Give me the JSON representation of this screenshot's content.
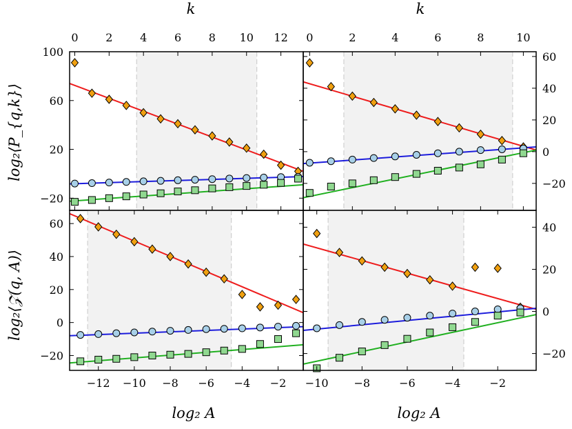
{
  "labels": {
    "top_xlabel": "k",
    "bottom_xlabel": "log₂ A",
    "ylabel_top": "log₂⟨P_{q,k}⟩",
    "ylabel_bottom": "log₂⟨𝒵(q, A)⟩"
  },
  "colors": {
    "orange": "#f0a010",
    "red_line": "#ee1c1c",
    "blue_fill": "#a8d0e8",
    "blue_line": "#1c1cdc",
    "green_fill": "#90d890",
    "green_line": "#20b020",
    "shade": "#f2f2f2"
  },
  "chart_data": [
    {
      "type": "scatter",
      "panel": "top-left",
      "x_axis": "k",
      "xlim": [
        -0.3,
        13.3
      ],
      "ylim": [
        -30,
        100
      ],
      "x_ticks": [
        0,
        2,
        4,
        6,
        8,
        10,
        12
      ],
      "y_ticks": [
        -20,
        20,
        60,
        100
      ],
      "y_tick_side": "left",
      "shaded_region": [
        3.6,
        10.6
      ],
      "series": [
        {
          "marker": "diamond",
          "x": [
            0,
            1,
            2,
            3,
            4,
            5,
            6,
            7,
            8,
            9,
            10,
            11,
            12,
            13
          ],
          "y": [
            91,
            66,
            61,
            56,
            50,
            45,
            41,
            36,
            31,
            26,
            21,
            16,
            7,
            2
          ]
        },
        {
          "marker": "circle",
          "x": [
            0,
            1,
            2,
            3,
            4,
            5,
            6,
            7,
            8,
            9,
            10,
            11,
            12,
            13
          ],
          "y": [
            -8,
            -7.7,
            -7.2,
            -6.7,
            -6.2,
            -5.8,
            -5.3,
            -4.9,
            -4.4,
            -3.9,
            -3.5,
            -3.1,
            -2.7,
            -2.5
          ]
        },
        {
          "marker": "square",
          "x": [
            0,
            1,
            2,
            3,
            4,
            5,
            6,
            7,
            8,
            9,
            10,
            11,
            12,
            13
          ],
          "y": [
            -23,
            -21.5,
            -20,
            -18.5,
            -17,
            -16,
            -14.5,
            -13.5,
            -12,
            -11,
            -10,
            -9,
            -7.5,
            -4
          ]
        }
      ],
      "fit_lines": [
        {
          "color": "red",
          "x": [
            -0.3,
            13.3
          ],
          "y": [
            74,
            2
          ]
        },
        {
          "color": "blue",
          "x": [
            -0.3,
            13.3
          ],
          "y": [
            -8.3,
            -2.3
          ]
        },
        {
          "color": "green",
          "x": [
            -0.3,
            13.3
          ],
          "y": [
            -22.5,
            -9
          ]
        }
      ]
    },
    {
      "type": "scatter",
      "panel": "top-right",
      "x_axis": "k",
      "xlim": [
        -0.3,
        10.6
      ],
      "ylim": [
        -37,
        63
      ],
      "x_ticks": [
        0,
        2,
        4,
        6,
        8,
        10
      ],
      "y_ticks": [
        -20,
        0,
        20,
        40,
        60
      ],
      "y_tick_side": "right",
      "shaded_region": [
        1.6,
        9.5
      ],
      "series": [
        {
          "marker": "diamond",
          "x": [
            0,
            1,
            2,
            3,
            4,
            5,
            6,
            7,
            8,
            9,
            10
          ],
          "y": [
            56,
            41,
            35,
            31,
            27,
            23,
            19,
            15,
            11,
            7,
            3
          ]
        },
        {
          "marker": "circle",
          "x": [
            0,
            1,
            2,
            3,
            4,
            5,
            6,
            7,
            8,
            9,
            10
          ],
          "y": [
            -7,
            -6,
            -5,
            -4,
            -3,
            -2,
            -1,
            0,
            1,
            1.5,
            2
          ]
        },
        {
          "marker": "square",
          "x": [
            0,
            1,
            2,
            3,
            4,
            5,
            6,
            7,
            8,
            9,
            10
          ],
          "y": [
            -26,
            -22,
            -20,
            -18,
            -16,
            -14,
            -12,
            -10,
            -8,
            -5,
            -1
          ]
        }
      ],
      "fit_lines": [
        {
          "color": "red",
          "x": [
            -0.3,
            10.6
          ],
          "y": [
            44,
            1
          ]
        },
        {
          "color": "blue",
          "x": [
            -0.3,
            10.6
          ],
          "y": [
            -7.5,
            3
          ]
        },
        {
          "color": "green",
          "x": [
            -0.3,
            10.6
          ],
          "y": [
            -29,
            1
          ]
        }
      ]
    },
    {
      "type": "scatter",
      "panel": "bottom-left",
      "x_axis": "log2 A",
      "xlim": [
        -13.6,
        -0.6
      ],
      "ylim": [
        -29,
        68
      ],
      "x_ticks": [
        -12,
        -10,
        -8,
        -6,
        -4,
        -2
      ],
      "y_ticks": [
        -20,
        0,
        20,
        40,
        60
      ],
      "y_tick_side": "left",
      "shaded_region": [
        -12.6,
        -4.6
      ],
      "series": [
        {
          "marker": "diamond",
          "x": [
            -13,
            -12,
            -11,
            -10,
            -9,
            -8,
            -7,
            -6,
            -5,
            -4,
            -3,
            -2,
            -1
          ],
          "y": [
            63,
            58,
            53.5,
            49,
            44.5,
            40,
            35.5,
            30.5,
            26.5,
            17,
            9.5,
            10.5,
            14
          ]
        },
        {
          "marker": "circle",
          "x": [
            -13,
            -12,
            -11,
            -10,
            -9,
            -8,
            -7,
            -6,
            -5,
            -4,
            -3,
            -2,
            -1
          ],
          "y": [
            -7.5,
            -7,
            -6.5,
            -6,
            -5.5,
            -5,
            -4.5,
            -4,
            -3.8,
            -3.5,
            -3,
            -2.5,
            -2
          ]
        },
        {
          "marker": "square",
          "x": [
            -13,
            -12,
            -11,
            -10,
            -9,
            -8,
            -7,
            -6,
            -5,
            -4,
            -3,
            -2,
            -1
          ],
          "y": [
            -23.5,
            -22.5,
            -22,
            -21,
            -20,
            -19.5,
            -19,
            -18,
            -17,
            -16,
            -13,
            -10,
            -6.5
          ]
        }
      ],
      "fit_lines": [
        {
          "color": "red",
          "x": [
            -13.6,
            -0.6
          ],
          "y": [
            66,
            6
          ]
        },
        {
          "color": "blue",
          "x": [
            -13.6,
            -0.6
          ],
          "y": [
            -8,
            -2.5
          ]
        },
        {
          "color": "green",
          "x": [
            -13.6,
            -0.6
          ],
          "y": [
            -24.5,
            -13.5
          ]
        }
      ]
    },
    {
      "type": "scatter",
      "panel": "bottom-right",
      "x_axis": "log2 A",
      "xlim": [
        -10.6,
        -0.3
      ],
      "ylim": [
        -28,
        48
      ],
      "x_ticks": [
        -10,
        -8,
        -6,
        -4,
        -2
      ],
      "y_ticks": [
        -20,
        0,
        20,
        40
      ],
      "y_tick_side": "right",
      "shaded_region": [
        -9.5,
        -3.5
      ],
      "series": [
        {
          "marker": "diamond",
          "x": [
            -10,
            -9,
            -8,
            -7,
            -6,
            -5,
            -4,
            -3,
            -2,
            -1
          ],
          "y": [
            37,
            28,
            24,
            21,
            18,
            15,
            12,
            21,
            20.5,
            2
          ]
        },
        {
          "marker": "circle",
          "x": [
            -10,
            -9,
            -8,
            -7,
            -6,
            -5,
            -4,
            -3,
            -2,
            -1
          ],
          "y": [
            -8,
            -6.5,
            -5,
            -4,
            -3,
            -2,
            -1,
            0,
            1,
            1.5
          ]
        },
        {
          "marker": "square",
          "x": [
            -10,
            -9,
            -8,
            -7,
            -6,
            -5,
            -4,
            -3,
            -2,
            -1
          ],
          "y": [
            -27,
            -22,
            -19,
            -16,
            -13,
            -10,
            -7.5,
            -5,
            -2,
            -0.5
          ]
        }
      ],
      "fit_lines": [
        {
          "color": "red",
          "x": [
            -10.6,
            -0.3
          ],
          "y": [
            32,
            1
          ]
        },
        {
          "color": "blue",
          "x": [
            -10.6,
            -0.3
          ],
          "y": [
            -9,
            1.5
          ]
        },
        {
          "color": "green",
          "x": [
            -10.6,
            -0.3
          ],
          "y": [
            -25,
            -1.5
          ]
        }
      ]
    }
  ]
}
